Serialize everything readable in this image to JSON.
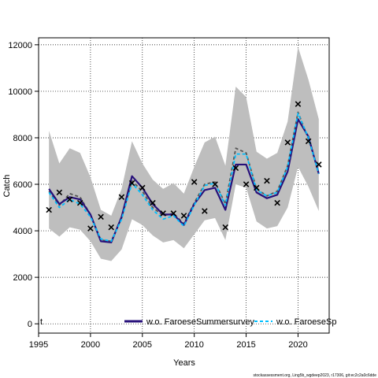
{
  "chart_data": {
    "type": "line",
    "xlabel": "Years",
    "ylabel": "Catch",
    "xlim": [
      1995,
      2023
    ],
    "ylim": [
      -400,
      12300
    ],
    "x_ticks": [
      1995,
      2000,
      2005,
      2010,
      2015,
      2020
    ],
    "y_ticks": [
      0,
      2000,
      4000,
      6000,
      8000,
      10000,
      12000
    ],
    "grid": true,
    "grid_style": "dotted",
    "legend_placement": "bottom",
    "legend_tag": "t",
    "x": [
      1996,
      1997,
      1998,
      1999,
      2000,
      2001,
      2002,
      2003,
      2004,
      2005,
      2006,
      2007,
      2008,
      2009,
      2010,
      2011,
      2012,
      2013,
      2014,
      2015,
      2016,
      2017,
      2018,
      2019,
      2020,
      2021,
      2022
    ],
    "band": {
      "color": "#bebebe",
      "upper": [
        8300,
        6900,
        7550,
        7350,
        6300,
        4900,
        4650,
        5800,
        7850,
        6900,
        6200,
        5800,
        6050,
        5600,
        6750,
        7800,
        8050,
        6800,
        10200,
        9750,
        7400,
        7100,
        7350,
        8700,
        11900,
        10500,
        8800
      ],
      "lower": [
        4100,
        3750,
        4150,
        4050,
        3550,
        2800,
        2700,
        3200,
        4500,
        4250,
        3800,
        3500,
        3600,
        3250,
        3850,
        4450,
        4550,
        3600,
        6000,
        5850,
        4400,
        4100,
        4200,
        5000,
        6750,
        5900,
        4850
      ]
    },
    "observed": {
      "marker": "x",
      "values": [
        4900,
        5650,
        5350,
        5200,
        4100,
        4600,
        4150,
        5450,
        6050,
        5850,
        5200,
        4750,
        4750,
        4650,
        6100,
        4850,
        6000,
        4150,
        6700,
        6000,
        5850,
        6150,
        5200,
        7800,
        9450,
        7850,
        6850
      ]
    },
    "series": [
      {
        "name": "w.o. FaroeseSummersurvey",
        "color": "#27107a",
        "dash": "solid",
        "values": [
          5800,
          5150,
          5450,
          5350,
          4700,
          3550,
          3500,
          4600,
          6350,
          5850,
          5150,
          4700,
          4700,
          4250,
          5150,
          5750,
          5850,
          4900,
          6850,
          6850,
          5650,
          5400,
          5550,
          6550,
          8800,
          8050,
          6450
        ]
      },
      {
        "name": "w.o. FaroeseSp",
        "color": "#00bfff",
        "dash": "dashed",
        "values": [
          5650,
          5000,
          5350,
          5150,
          4600,
          3650,
          3550,
          4500,
          6050,
          5550,
          4900,
          4500,
          4650,
          4200,
          5100,
          5950,
          6050,
          5100,
          7300,
          7300,
          5750,
          5500,
          5650,
          6750,
          9050,
          8000,
          6450
        ]
      },
      {
        "color": "#555555",
        "dash": "dashed",
        "values": [
          5700,
          5100,
          5600,
          5450,
          4700,
          3600,
          3550,
          4550,
          6150,
          5700,
          5000,
          4650,
          4750,
          4300,
          5200,
          6000,
          6100,
          5150,
          7550,
          7350,
          5800,
          5500,
          5700,
          6800,
          9100,
          7950,
          6500
        ]
      }
    ]
  },
  "footnote": "stockassessment.org, Ling5b_wgdeep2023, r17306, git:ec2c2a0c6dde"
}
